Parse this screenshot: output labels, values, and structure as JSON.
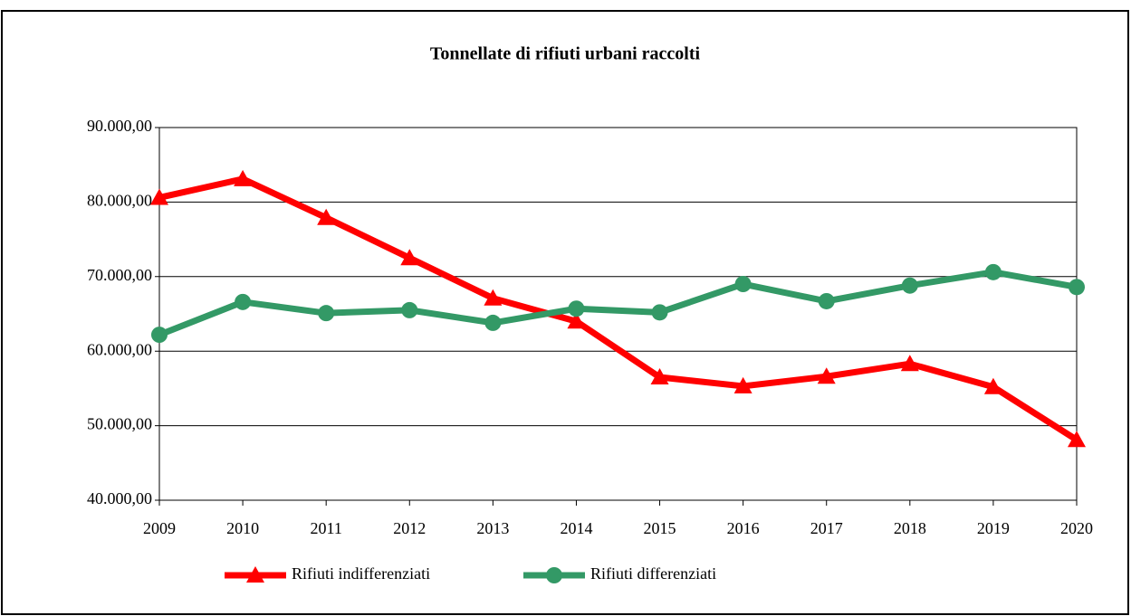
{
  "chart_data": {
    "type": "line",
    "title": "Tonnellate di rifiuti urbani raccolti",
    "categories": [
      "2009",
      "2010",
      "2011",
      "2012",
      "2013",
      "2014",
      "2015",
      "2016",
      "2017",
      "2018",
      "2019",
      "2020"
    ],
    "series": [
      {
        "name": "Rifiuti indifferenziati",
        "color": "#ff0000",
        "marker": "triangle",
        "values": [
          80600,
          83100,
          77900,
          72500,
          67100,
          64000,
          56500,
          55300,
          56600,
          58300,
          55200,
          48100
        ]
      },
      {
        "name": "Rifiuti differenziati",
        "color": "#339966",
        "marker": "circle",
        "values": [
          62200,
          66600,
          65100,
          65500,
          63800,
          65700,
          65200,
          69000,
          66700,
          68800,
          70600,
          68600
        ]
      }
    ],
    "ylim": [
      40000,
      90000
    ],
    "yticks": [
      {
        "value": 40000,
        "label": "40.000,00"
      },
      {
        "value": 50000,
        "label": "50.000,00"
      },
      {
        "value": 60000,
        "label": "60.000,00"
      },
      {
        "value": 70000,
        "label": "70.000,00"
      },
      {
        "value": 80000,
        "label": "80.000,00"
      },
      {
        "value": 90000,
        "label": "90.000,00"
      }
    ],
    "grid": true,
    "legend": "bottom"
  }
}
